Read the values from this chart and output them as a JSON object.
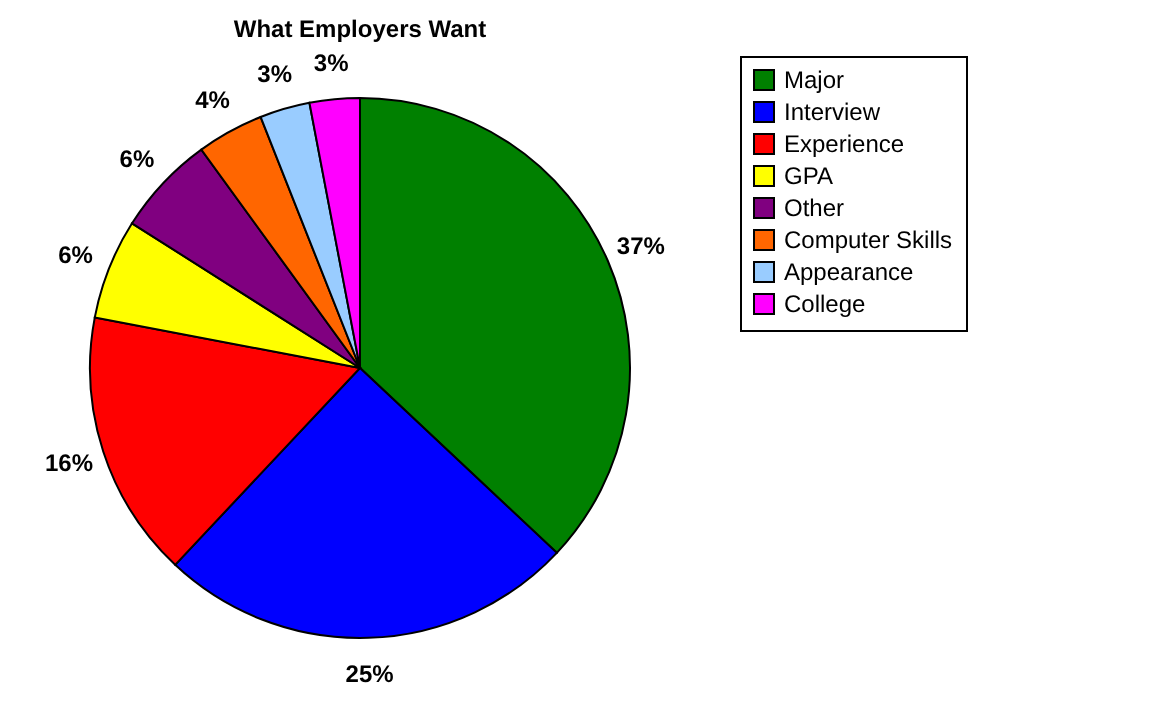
{
  "chart_data": {
    "type": "pie",
    "title": "What Employers Want",
    "categories": [
      "Major",
      "Interview",
      "Experience",
      "GPA",
      "Other",
      "Computer Skills",
      "Appearance",
      "College"
    ],
    "values": [
      37,
      25,
      16,
      6,
      6,
      4,
      3,
      3
    ],
    "colors": [
      "#008000",
      "#0000ff",
      "#ff0000",
      "#ffff00",
      "#800080",
      "#ff6600",
      "#99ccff",
      "#ff00ff"
    ],
    "value_labels": [
      "37%",
      "25%",
      "16%",
      "6%",
      "6%",
      "4%",
      "3%",
      "3%"
    ],
    "legend": "right"
  }
}
